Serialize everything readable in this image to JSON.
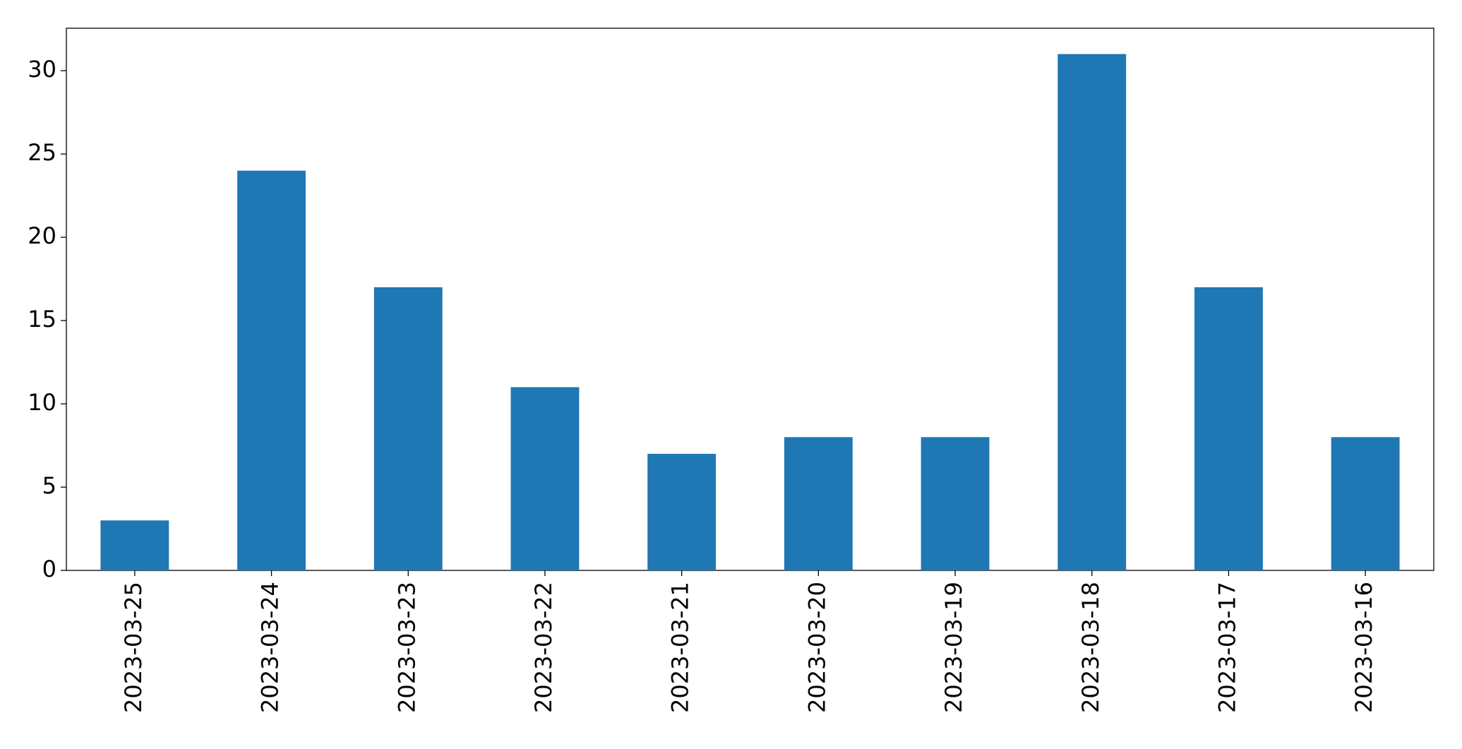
{
  "chart_data": {
    "type": "bar",
    "categories": [
      "2023-03-25",
      "2023-03-24",
      "2023-03-23",
      "2023-03-22",
      "2023-03-21",
      "2023-03-20",
      "2023-03-19",
      "2023-03-18",
      "2023-03-17",
      "2023-03-16"
    ],
    "values": [
      3,
      24,
      17,
      11,
      7,
      8,
      8,
      31,
      17,
      8
    ],
    "color": "#1f77b4",
    "ylim": [
      0,
      32.55
    ],
    "yticks": [
      0,
      5,
      10,
      15,
      20,
      25,
      30
    ],
    "grid": false
  }
}
